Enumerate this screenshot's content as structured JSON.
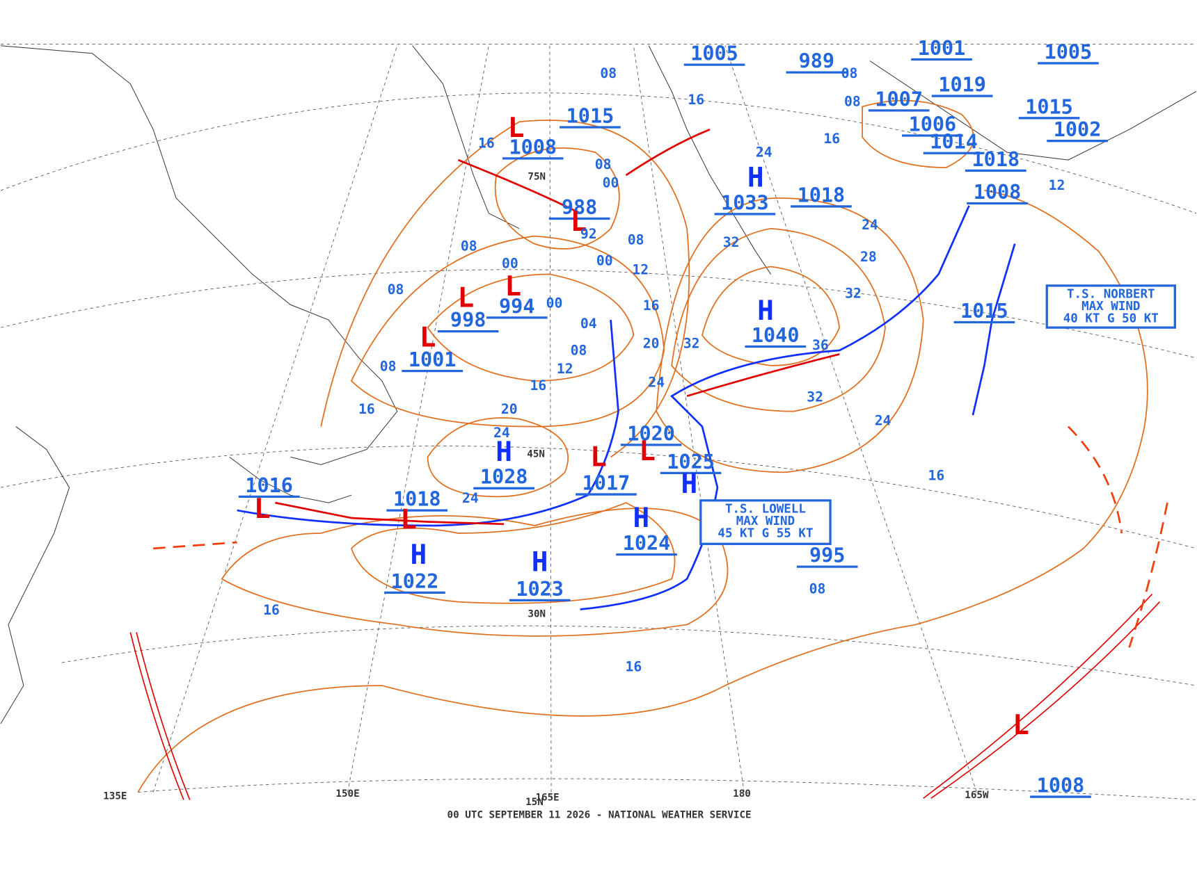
{
  "map": {
    "footer": "00 UTC SEPTEMBER 11 2026 - NATIONAL WEATHER SERVICE",
    "grid_labels": [
      "150E",
      "165E",
      "180",
      "165W",
      "135E",
      "45N",
      "30N",
      "15N",
      "75N"
    ],
    "centers": [
      {
        "symbol": "H",
        "pressure": "1028"
      },
      {
        "symbol": "H",
        "pressure": "1022"
      },
      {
        "symbol": "H",
        "pressure": "1023"
      },
      {
        "symbol": "H",
        "pressure": "1024"
      },
      {
        "symbol": "H",
        "pressure": "1025"
      },
      {
        "symbol": "H",
        "pressure": "1033"
      },
      {
        "symbol": "H",
        "pressure": "1040"
      },
      {
        "symbol": "L",
        "pressure": "1016"
      },
      {
        "symbol": "L",
        "pressure": "1018"
      },
      {
        "symbol": "L",
        "pressure": "1017"
      },
      {
        "symbol": "L",
        "pressure": "1020"
      },
      {
        "symbol": "L",
        "pressure": "1001"
      },
      {
        "symbol": "L",
        "pressure": "998"
      },
      {
        "symbol": "L",
        "pressure": "994"
      },
      {
        "symbol": "L",
        "pressure": "988"
      },
      {
        "symbol": "L",
        "pressure": "1008"
      },
      {
        "symbol": "L",
        "pressure": "1008"
      }
    ],
    "pressure_labels": [
      "1015",
      "995",
      "1015",
      "1008",
      "1018",
      "1005",
      "989",
      "1001",
      "1019",
      "1007",
      "1006",
      "1014",
      "1018",
      "1005",
      "1015",
      "1002"
    ],
    "isobar_labels": [
      "08",
      "08",
      "08",
      "08",
      "08",
      "08",
      "08",
      "08",
      "08",
      "08",
      "16",
      "16",
      "16",
      "16",
      "16",
      "16",
      "16",
      "16",
      "16",
      "00",
      "00",
      "00",
      "00",
      "12",
      "12",
      "12",
      "20",
      "20",
      "24",
      "24",
      "24",
      "24",
      "24",
      "24",
      "28",
      "32",
      "32",
      "32",
      "32",
      "36",
      "04",
      "92"
    ],
    "storms": [
      {
        "name": "T.S. NORBERT",
        "line2": "MAX WIND",
        "wind": "40 KT G 50 KT"
      },
      {
        "name": "T.S. LOWELL",
        "line2": "MAX WIND",
        "wind": "45 KT G 55 KT"
      }
    ]
  }
}
